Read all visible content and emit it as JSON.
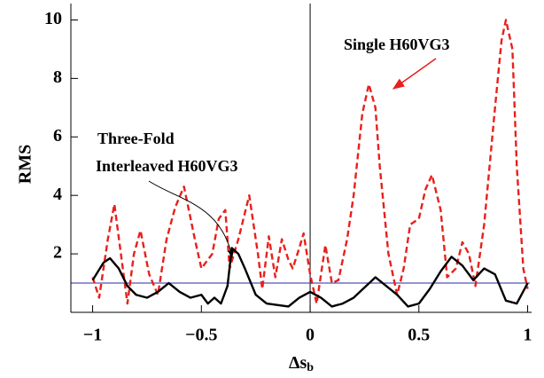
{
  "chart_data": {
    "type": "line",
    "y_label": "RMS",
    "x_label": "Δs",
    "x_label_subscript": "b",
    "xlim": [
      -1.1,
      1.01
    ],
    "ylim": [
      0,
      10.5
    ],
    "xticks": [
      {
        "value": -1,
        "label": "−1"
      },
      {
        "value": -0.5,
        "label": "−0.5"
      },
      0,
      0.5,
      1
    ],
    "yticks": [
      2,
      4,
      6,
      8,
      10
    ],
    "hline": 1,
    "hline_color": "#2a2aa8",
    "vline": 0,
    "annotations": [
      "Single H60VG3",
      "Three-Fold",
      "Interleaved H60VG3"
    ],
    "series": [
      {
        "name": "Single H60VG3",
        "color": "#e8201c",
        "dash": true,
        "x": [
          -1,
          -0.97,
          -0.93,
          -0.9,
          -0.87,
          -0.84,
          -0.81,
          -0.78,
          -0.74,
          -0.7,
          -0.66,
          -0.62,
          -0.58,
          -0.53,
          -0.5,
          -0.45,
          -0.42,
          -0.39,
          -0.37,
          -0.33,
          -0.28,
          -0.24,
          -0.22,
          -0.19,
          -0.16,
          -0.13,
          -0.1,
          -0.08,
          -0.05,
          -0.03,
          0,
          0.03,
          0.07,
          0.1,
          0.13,
          0.17,
          0.2,
          0.24,
          0.27,
          0.3,
          0.32,
          0.36,
          0.4,
          0.43,
          0.46,
          0.5,
          0.53,
          0.56,
          0.6,
          0.63,
          0.67,
          0.7,
          0.73,
          0.76,
          0.8,
          0.85,
          0.88,
          0.9,
          0.93,
          0.95,
          0.98,
          1
        ],
        "values": [
          1.2,
          0.5,
          2.5,
          3.7,
          2.0,
          0.3,
          2.0,
          2.8,
          1.3,
          0.6,
          2.5,
          3.6,
          4.3,
          2.5,
          1.5,
          2.0,
          3.2,
          3.5,
          1.5,
          2.5,
          4.0,
          2.0,
          0.8,
          2.6,
          1.2,
          2.5,
          1.8,
          1.5,
          2.2,
          2.7,
          1.3,
          0.3,
          2.3,
          1.0,
          1.1,
          2.5,
          4.0,
          6.8,
          7.8,
          7.0,
          5.0,
          2.0,
          0.6,
          1.5,
          3.0,
          3.2,
          4.2,
          4.7,
          3.5,
          1.2,
          1.5,
          2.4,
          2.0,
          0.9,
          3.0,
          7.0,
          9.3,
          10.0,
          9.0,
          5.0,
          1.5,
          0.8
        ]
      },
      {
        "name": "Three-Fold Interleaved H60VG3",
        "color": "#000000",
        "dash": false,
        "x": [
          -1,
          -0.95,
          -0.92,
          -0.88,
          -0.84,
          -0.8,
          -0.75,
          -0.7,
          -0.65,
          -0.6,
          -0.55,
          -0.5,
          -0.47,
          -0.44,
          -0.41,
          -0.38,
          -0.36,
          -0.33,
          -0.3,
          -0.25,
          -0.2,
          -0.1,
          -0.05,
          0,
          0.05,
          0.1,
          0.15,
          0.2,
          0.3,
          0.35,
          0.4,
          0.45,
          0.5,
          0.55,
          0.6,
          0.65,
          0.7,
          0.75,
          0.8,
          0.85,
          0.9,
          0.95,
          1
        ],
        "values": [
          1.1,
          1.7,
          1.85,
          1.5,
          0.9,
          0.6,
          0.5,
          0.7,
          1.0,
          0.7,
          0.5,
          0.6,
          0.3,
          0.5,
          0.3,
          0.9,
          2.2,
          2.0,
          1.5,
          0.6,
          0.3,
          0.2,
          0.5,
          0.7,
          0.5,
          0.2,
          0.3,
          0.5,
          1.2,
          0.9,
          0.6,
          0.2,
          0.3,
          0.8,
          1.4,
          1.9,
          1.6,
          1.1,
          1.5,
          1.3,
          0.4,
          0.3,
          1.0
        ]
      }
    ]
  }
}
